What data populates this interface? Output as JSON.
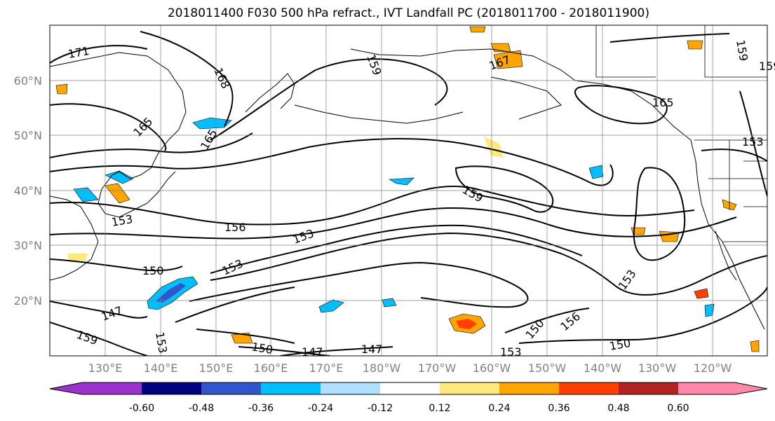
{
  "title": "2018011400 F030 500 hPa refract., IVT Landfall PC (2018011700 - 2018011900)",
  "axes": {
    "lat_labels": [
      "60°N",
      "50°N",
      "40°N",
      "30°N",
      "20°N"
    ],
    "lon_labels": [
      "130°E",
      "140°E",
      "150°E",
      "160°E",
      "170°E",
      "180°W",
      "170°W",
      "160°W",
      "150°W",
      "140°W",
      "130°W",
      "120°W"
    ]
  },
  "colorbar": {
    "tick_labels": [
      "-0.60",
      "-0.48",
      "-0.36",
      "-0.24",
      "-0.12",
      "0.12",
      "0.24",
      "0.36",
      "0.48",
      "0.60"
    ],
    "colors": [
      "#9933cc",
      "#000080",
      "#3355cc",
      "#00bfff",
      "#b0e0ff",
      "#ffffff",
      "#ffe97f",
      "#ffa500",
      "#ff4000",
      "#b22222",
      "#ff88aa"
    ]
  },
  "contour_labels": [
    "171",
    "168",
    "165",
    "165",
    "159",
    "156",
    "153",
    "153",
    "150",
    "147",
    "159",
    "153",
    "150",
    "147",
    "147",
    "153",
    "150",
    "150",
    "153",
    "156",
    "153",
    "159",
    "159",
    "167",
    "165",
    "159",
    "153"
  ],
  "colors": {
    "contour": "#000000",
    "grid": "#808080",
    "axis_label": "#808080"
  }
}
